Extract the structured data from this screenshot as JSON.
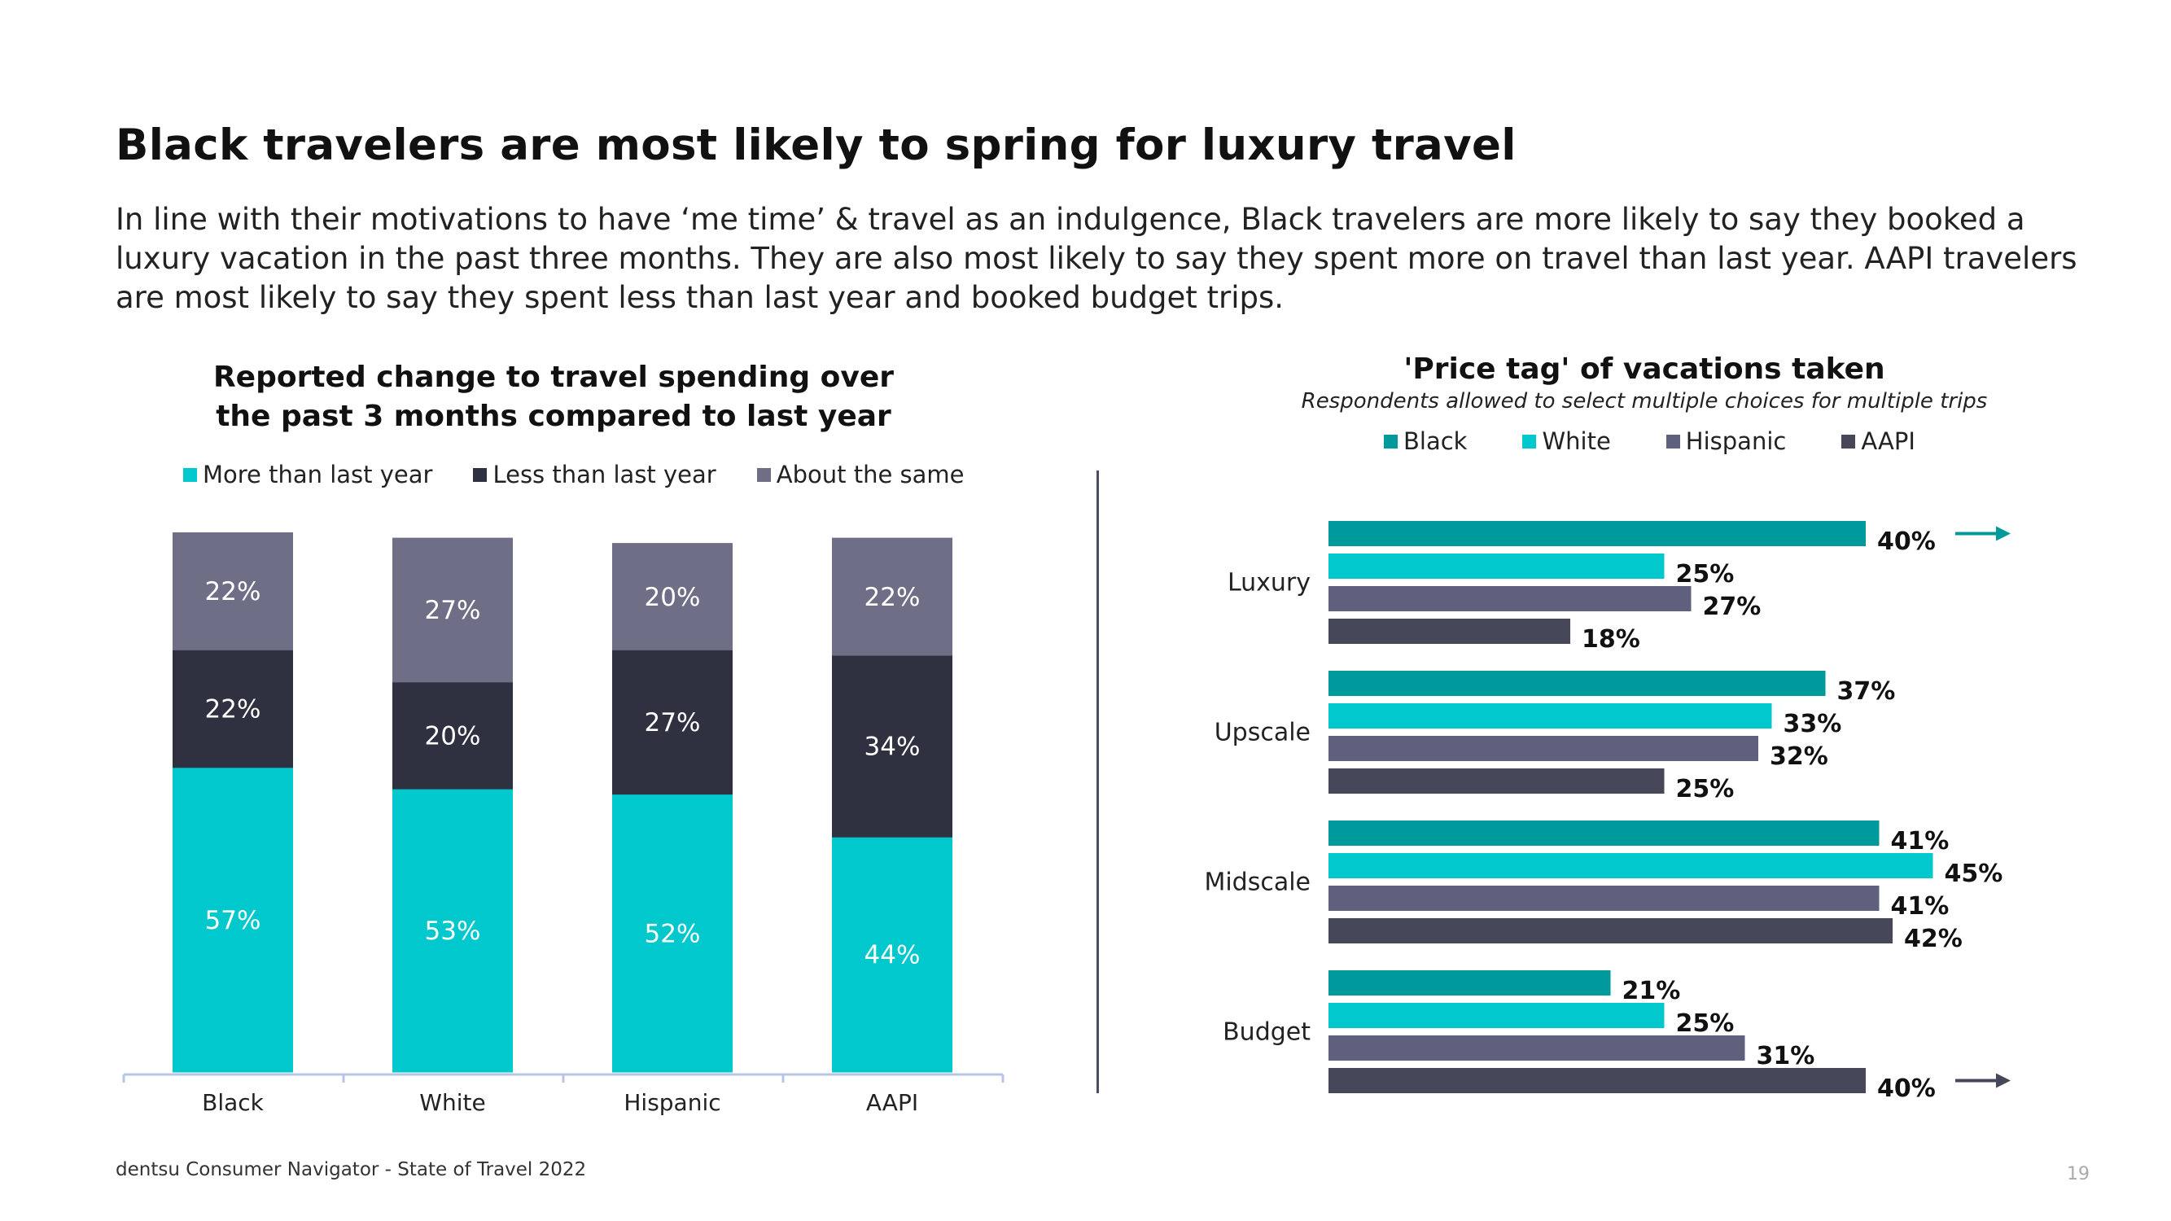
{
  "page": {
    "title": "Black travelers are most likely to spring for luxury travel",
    "subtitle": "In line with their motivations to have ‘me time’ & travel as an indulgence, Black travelers are more likely to say they booked a luxury vacation in the past three months. They are also most likely to say they spent more on travel than last year. AAPI travelers are most likely to say they spent less than last year and booked budget trips.",
    "footer": "dentsu Consumer Navigator - State of Travel 2022",
    "page_number": "19"
  },
  "chart_data": [
    {
      "type": "bar",
      "stacked": true,
      "title": "Reported change to travel spending over the past 3 months compared to last year",
      "title_lines": [
        "Reported change to travel spending over",
        "the past 3 months compared to last year"
      ],
      "categories": [
        "Black",
        "White",
        "Hispanic",
        "AAPI"
      ],
      "series": [
        {
          "name": "More than last year",
          "values": [
            57,
            53,
            52,
            44
          ],
          "color": "#00c8cc",
          "label_color": "#ffffff"
        },
        {
          "name": "Less than last year",
          "values": [
            22,
            20,
            27,
            34
          ],
          "color": "#2f3140",
          "label_color": "#ffffff"
        },
        {
          "name": "About the same",
          "values": [
            22,
            27,
            20,
            22
          ],
          "color": "#6e6f87",
          "label_color": "#ffffff"
        }
      ],
      "value_suffix": "%",
      "legend_position": "top",
      "grid": false,
      "ylim": [
        0,
        101
      ]
    },
    {
      "type": "bar",
      "orientation": "horizontal",
      "title": "'Price tag' of vacations taken",
      "note": "Respondents allowed to select multiple choices for multiple trips",
      "categories": [
        "Luxury",
        "Upscale",
        "Midscale",
        "Budget"
      ],
      "series": [
        {
          "name": "Black",
          "values": [
            40,
            37,
            41,
            21
          ],
          "color": "#009a9c"
        },
        {
          "name": "White",
          "values": [
            25,
            33,
            45,
            25
          ],
          "color": "#00c8cc"
        },
        {
          "name": "Hispanic",
          "values": [
            27,
            32,
            41,
            31
          ],
          "color": "#5f607d"
        },
        {
          "name": "AAPI",
          "values": [
            18,
            25,
            42,
            40
          ],
          "color": "#464759"
        }
      ],
      "highlights": [
        {
          "category": "Luxury",
          "series": "Black",
          "color": "#009a9c"
        },
        {
          "category": "Budget",
          "series": "AAPI",
          "color": "#464759"
        }
      ],
      "value_suffix": "%",
      "legend_position": "top",
      "grid": false,
      "xlim": [
        0,
        50
      ]
    }
  ]
}
